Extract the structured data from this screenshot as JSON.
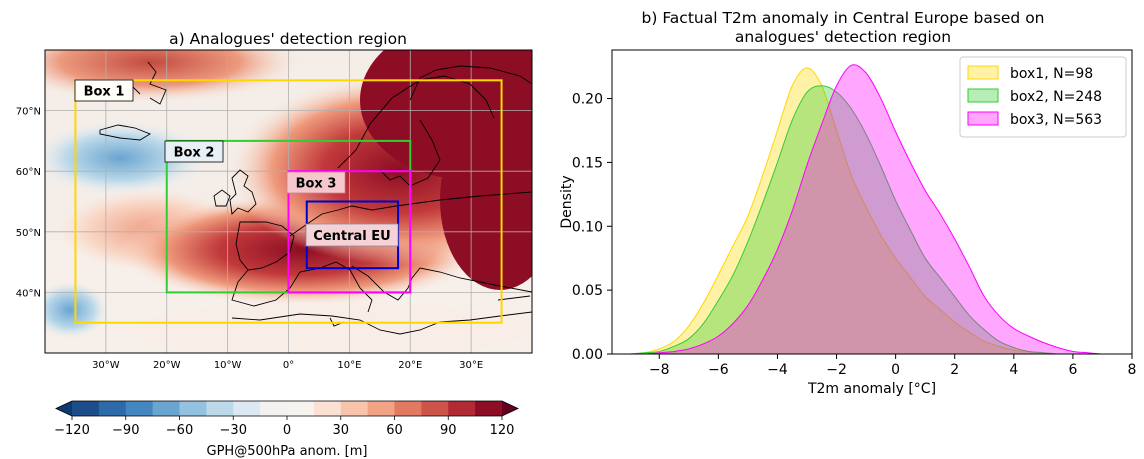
{
  "map_panel": {
    "title": "a) Analogues' detection region",
    "lon_ticks": [
      "30°W",
      "20°W",
      "10°W",
      "0°",
      "10°E",
      "20°E",
      "30°E"
    ],
    "lon_values": [
      -30,
      -20,
      -10,
      0,
      10,
      20,
      30
    ],
    "lat_ticks": [
      "70°N",
      "60°N",
      "50°N",
      "40°N"
    ],
    "lat_values": [
      70,
      60,
      50,
      40
    ],
    "extent": {
      "lon_min": -40,
      "lon_max": 40,
      "lat_min": 30,
      "lat_max": 80
    },
    "boxes": [
      {
        "label": "Box 1",
        "color": "#ffd700",
        "lon": [
          -35,
          35
        ],
        "lat": [
          35,
          75
        ]
      },
      {
        "label": "Box 2",
        "color": "#32cd32",
        "lon": [
          -20,
          20
        ],
        "lat": [
          40,
          65
        ]
      },
      {
        "label": "Box 3",
        "color": "#ff00ff",
        "lon": [
          0,
          20
        ],
        "lat": [
          40,
          60
        ]
      },
      {
        "label": "Central EU",
        "color": "#0000cd",
        "lon": [
          3,
          18
        ],
        "lat": [
          44,
          55
        ]
      }
    ],
    "colorbar": {
      "label": "GPH@500hPa anom. [m]",
      "ticks": [
        "−120",
        "−90",
        "−60",
        "−30",
        "0",
        "30",
        "60",
        "90",
        "120"
      ],
      "tick_values": [
        -120,
        -90,
        -60,
        -30,
        0,
        30,
        60,
        90,
        120
      ],
      "range": [
        -120,
        120
      ],
      "colors": [
        "#1d4e89",
        "#2c6aa8",
        "#4386c0",
        "#6aa5d0",
        "#93c1e0",
        "#bcd9ea",
        "#dde9f2",
        "#f3f2f1",
        "#f7f4ef",
        "#fbe1d3",
        "#f8c5ac",
        "#f2a385",
        "#e27a61",
        "#cd5448",
        "#b22a33",
        "#8c0d24"
      ],
      "under_color": "#0c3a6e",
      "over_color": "#67001f"
    }
  },
  "chart_data": {
    "type": "area",
    "title": "b) Factual T2m anomaly in Central Europe based on\nanalogues' detection region",
    "xlabel": "T2m anomaly [°C]",
    "ylabel": "Density",
    "xlim": [
      -9.6,
      8.0
    ],
    "ylim": [
      0,
      0.238
    ],
    "xticks": [
      -8,
      -6,
      -4,
      -2,
      0,
      2,
      4,
      6,
      8
    ],
    "yticks": [
      0.0,
      0.05,
      0.1,
      0.15,
      0.2
    ],
    "legend_position": "top-right",
    "grid": false,
    "x": [
      -9,
      -8.5,
      -8,
      -7.5,
      -7,
      -6.5,
      -6,
      -5.5,
      -5,
      -4.5,
      -4,
      -3.5,
      -3,
      -2.5,
      -2,
      -1.5,
      -1,
      -0.5,
      0,
      0.5,
      1,
      1.5,
      2,
      2.5,
      3,
      3.5,
      4,
      4.5,
      5,
      5.5,
      6,
      6.5,
      7,
      7.5
    ],
    "series": [
      {
        "name": "box1, N=98",
        "color": "#ffd700",
        "values": [
          0,
          0.001,
          0.004,
          0.01,
          0.022,
          0.04,
          0.062,
          0.085,
          0.108,
          0.14,
          0.175,
          0.21,
          0.224,
          0.21,
          0.175,
          0.14,
          0.115,
          0.093,
          0.075,
          0.06,
          0.045,
          0.035,
          0.025,
          0.017,
          0.01,
          0.006,
          0.003,
          0.002,
          0.001,
          0,
          0,
          0,
          0,
          0
        ]
      },
      {
        "name": "box2, N=248",
        "color": "#32cd32",
        "values": [
          0,
          0.001,
          0.002,
          0.006,
          0.012,
          0.024,
          0.042,
          0.062,
          0.088,
          0.118,
          0.15,
          0.183,
          0.205,
          0.21,
          0.205,
          0.192,
          0.172,
          0.147,
          0.12,
          0.097,
          0.075,
          0.06,
          0.045,
          0.03,
          0.019,
          0.01,
          0.005,
          0.002,
          0.001,
          0,
          0,
          0,
          0,
          0
        ]
      },
      {
        "name": "box3, N=563",
        "color": "#ff00ff",
        "values": [
          0,
          0,
          0.001,
          0.002,
          0.004,
          0.008,
          0.014,
          0.024,
          0.038,
          0.058,
          0.082,
          0.112,
          0.148,
          0.18,
          0.21,
          0.226,
          0.22,
          0.2,
          0.174,
          0.15,
          0.128,
          0.11,
          0.09,
          0.068,
          0.045,
          0.03,
          0.02,
          0.014,
          0.009,
          0.005,
          0.002,
          0.001,
          0,
          0
        ]
      }
    ]
  }
}
